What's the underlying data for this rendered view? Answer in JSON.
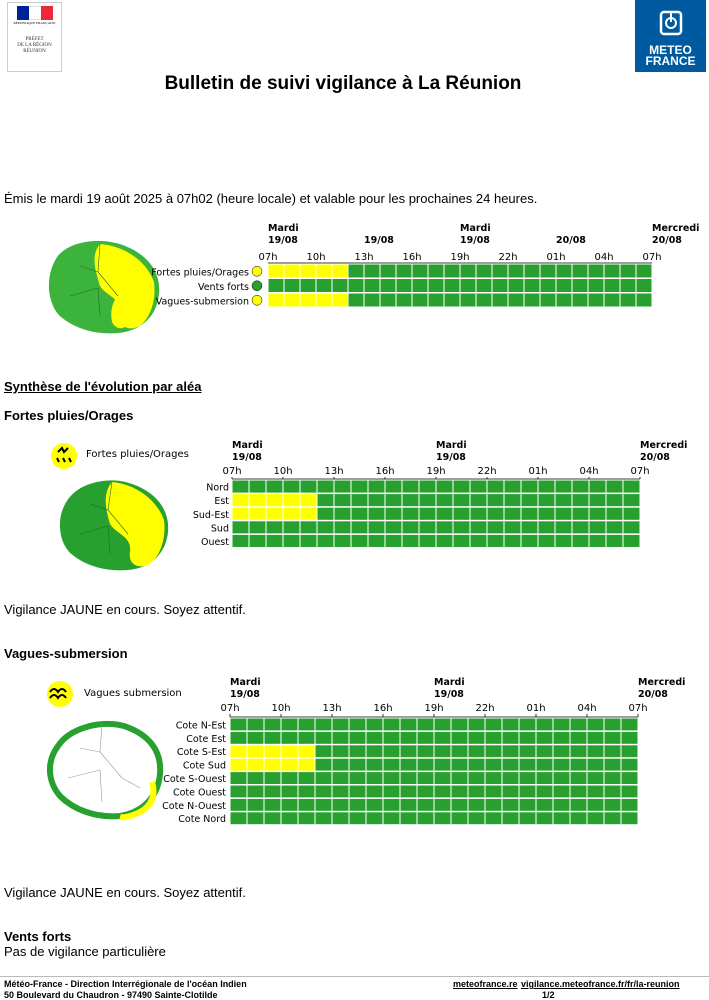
{
  "header": {
    "prefet_logo": {
      "republic": "RÉPUBLIQUE FRANÇAISE",
      "line1": "PRÉFET",
      "line2": "DE LA RÉGION",
      "line3": "RÉUNION",
      "flag_colors": [
        "#002395",
        "#ffffff",
        "#ed2939"
      ]
    },
    "mf_logo": {
      "line1": "METEO",
      "line2": "FRANCE",
      "color": "#005aa0"
    },
    "title": "Bulletin de suivi vigilance à La Réunion"
  },
  "emission_text": "Émis le mardi 19 août 2025 à 07h02 (heure locale) et valable pour les prochaines 24 heures.",
  "colors": {
    "green": "#28a030",
    "yellow": "#ffff00",
    "green_outline": "#3cb43c"
  },
  "overview": {
    "time_header": {
      "days": [
        {
          "line1": "Mardi",
          "line2": "19/08"
        },
        {
          "line1": "",
          "line2": "19/08"
        },
        {
          "line1": "Mardi",
          "line2": "19/08"
        },
        {
          "line1": "",
          "line2": "20/08"
        },
        {
          "line1": "Mercredi",
          "line2": "20/08"
        }
      ],
      "hours": [
        "07h",
        "10h",
        "13h",
        "16h",
        "19h",
        "22h",
        "01h",
        "04h",
        "07h"
      ]
    },
    "rows": [
      {
        "label": "Fortes pluies/Orages",
        "yellow_cells": 5,
        "icon": "rain-storm-icon"
      },
      {
        "label": "Vents forts",
        "yellow_cells": 0,
        "icon": "wind-icon"
      },
      {
        "label": "Vagues-submersion",
        "yellow_cells": 5,
        "icon": "waves-icon"
      }
    ],
    "total_cells": 24
  },
  "synthese_heading": "Synthèse de l'évolution par aléa",
  "pluies": {
    "heading": "Fortes pluies/Orages",
    "legend_label": "Fortes pluies/Orages",
    "time_header": {
      "days": [
        {
          "line1": "Mardi",
          "line2": "19/08"
        },
        {
          "line1": "Mardi",
          "line2": "19/08"
        },
        {
          "line1": "Mercredi",
          "line2": "20/08"
        }
      ],
      "hours": [
        "07h",
        "10h",
        "13h",
        "16h",
        "19h",
        "22h",
        "01h",
        "04h",
        "07h"
      ]
    },
    "rows": [
      {
        "label": "Nord",
        "yellow_cells": 0
      },
      {
        "label": "Est",
        "yellow_cells": 5
      },
      {
        "label": "Sud-Est",
        "yellow_cells": 5
      },
      {
        "label": "Sud",
        "yellow_cells": 0
      },
      {
        "label": "Ouest",
        "yellow_cells": 0
      }
    ],
    "total_cells": 24,
    "status": "Vigilance JAUNE en cours. Soyez attentif."
  },
  "vagues": {
    "heading": "Vagues-submersion",
    "legend_label": "Vagues submersion",
    "time_header": {
      "days": [
        {
          "line1": "Mardi",
          "line2": "19/08"
        },
        {
          "line1": "Mardi",
          "line2": "19/08"
        },
        {
          "line1": "Mercredi",
          "line2": "20/08"
        }
      ],
      "hours": [
        "07h",
        "10h",
        "13h",
        "16h",
        "19h",
        "22h",
        "01h",
        "04h",
        "07h"
      ]
    },
    "rows": [
      {
        "label": "Cote N-Est",
        "yellow_cells": 0
      },
      {
        "label": "Cote Est",
        "yellow_cells": 0
      },
      {
        "label": "Cote S-Est",
        "yellow_cells": 5
      },
      {
        "label": "Cote Sud",
        "yellow_cells": 5
      },
      {
        "label": "Cote S-Ouest",
        "yellow_cells": 0
      },
      {
        "label": "Cote Ouest",
        "yellow_cells": 0
      },
      {
        "label": "Cote N-Ouest",
        "yellow_cells": 0
      },
      {
        "label": "Cote Nord",
        "yellow_cells": 0
      }
    ],
    "total_cells": 24,
    "status": "Vigilance JAUNE en cours. Soyez attentif."
  },
  "vents": {
    "heading": "Vents forts",
    "status": "Pas de vigilance particulière"
  },
  "footer": {
    "line1": "Météo-France - Direction Interrégionale de l'océan Indien",
    "line2": "50 Boulevard du Chaudron - 97490 Sainte-Clotilde",
    "link1": "meteofrance.re",
    "link2": "vigilance.meteofrance.fr/fr/la-reunion",
    "page": "1/2"
  }
}
